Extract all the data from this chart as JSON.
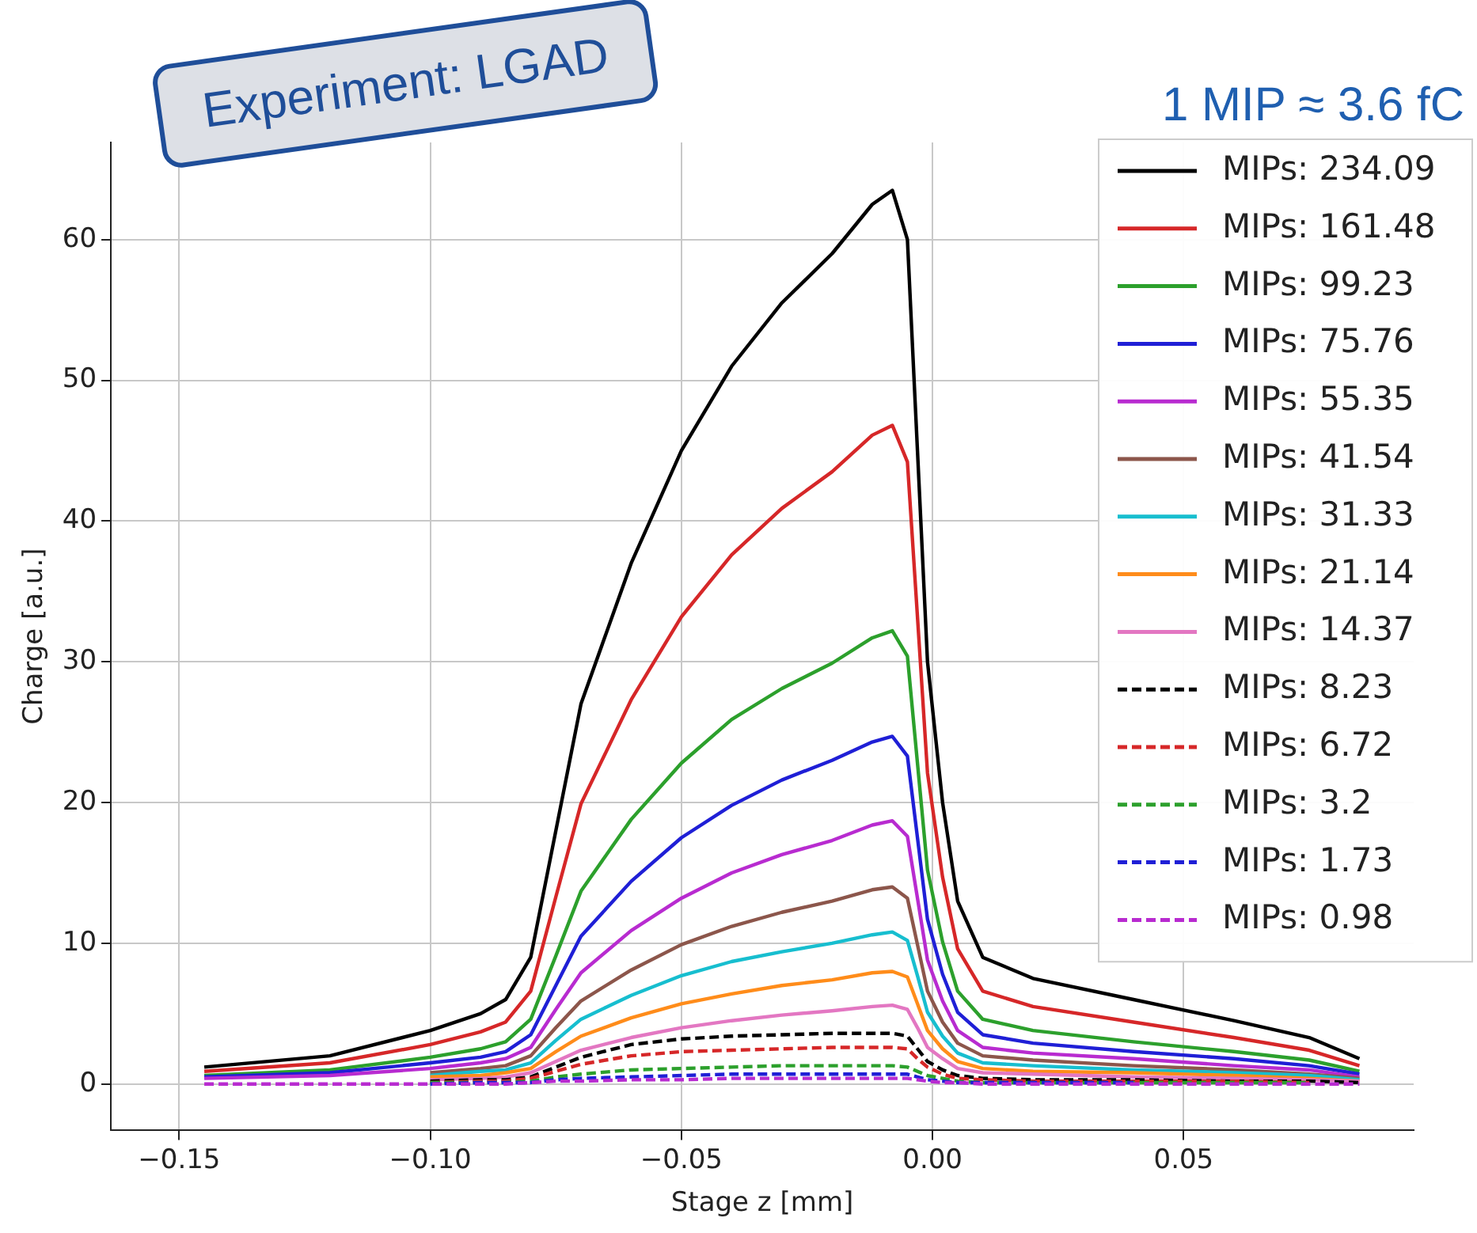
{
  "chart_data": {
    "type": "line",
    "xlabel": "Stage z [mm]",
    "ylabel": "Charge [a.u.]",
    "annotations": [
      "Experiment: LGAD",
      "1 MIP ≈ 3.6 fC"
    ],
    "x": [
      -0.145,
      -0.12,
      -0.1,
      -0.09,
      -0.085,
      -0.08,
      -0.075,
      -0.07,
      -0.06,
      -0.05,
      -0.04,
      -0.03,
      -0.02,
      -0.012,
      -0.008,
      -0.005,
      -0.003,
      -0.001,
      0.002,
      0.005,
      0.01,
      0.02,
      0.04,
      0.06,
      0.075,
      0.085
    ],
    "xlim": [
      -0.1636,
      0.0958
    ],
    "ylim": [
      -3.3,
      66.9
    ],
    "xticks": [
      {
        "value": -0.15,
        "label": "−0.15"
      },
      {
        "value": -0.1,
        "label": "−0.10"
      },
      {
        "value": -0.05,
        "label": "−0.05"
      },
      {
        "value": 0,
        "label": "0.00"
      },
      {
        "value": 0.05,
        "label": "0.05"
      }
    ],
    "yticks": [
      0,
      10,
      20,
      30,
      40,
      50,
      60
    ],
    "grid": true,
    "legend": "top right",
    "marker": "none",
    "series": [
      {
        "name": "MIPs: 234.09",
        "color": "#000000",
        "line_style": "solid",
        "values": [
          1.2,
          2,
          3.8,
          5,
          6,
          9,
          18,
          27,
          37,
          45,
          51,
          55.5,
          59,
          62.5,
          63.5,
          60,
          45,
          30,
          20,
          13,
          9,
          7.5,
          6,
          4.5,
          3.3,
          1.8
        ]
      },
      {
        "name": "MIPs: 161.48",
        "color": "#d62728",
        "line_style": "solid",
        "values": [
          0.9,
          1.5,
          2.8,
          3.7,
          4.4,
          6.6,
          13.3,
          19.9,
          27.3,
          33.2,
          37.6,
          40.9,
          43.5,
          46.1,
          46.8,
          44.2,
          33.2,
          22.1,
          14.7,
          9.6,
          6.6,
          5.5,
          4.4,
          3.3,
          2.4,
          1.3
        ]
      },
      {
        "name": "MIPs: 99.23",
        "color": "#2ca02c",
        "line_style": "solid",
        "values": [
          0.6,
          1,
          1.9,
          2.5,
          3,
          4.6,
          9.1,
          13.7,
          18.8,
          22.8,
          25.9,
          28.1,
          29.9,
          31.7,
          32.2,
          30.4,
          22.8,
          15.2,
          10.1,
          6.6,
          4.6,
          3.8,
          3,
          2.3,
          1.7,
          0.9
        ]
      },
      {
        "name": "MIPs: 75.76",
        "color": "#1f1fd6",
        "line_style": "solid",
        "values": [
          0.5,
          0.8,
          1.5,
          1.9,
          2.3,
          3.5,
          7,
          10.5,
          14.4,
          17.5,
          19.8,
          21.6,
          23,
          24.3,
          24.7,
          23.3,
          17.5,
          11.7,
          7.8,
          5.1,
          3.5,
          2.9,
          2.3,
          1.8,
          1.3,
          0.7
        ]
      },
      {
        "name": "MIPs: 55.35",
        "color": "#b82bd0",
        "line_style": "solid",
        "values": [
          0.4,
          0.6,
          1.1,
          1.5,
          1.8,
          2.6,
          5.3,
          7.9,
          10.9,
          13.2,
          15,
          16.3,
          17.3,
          18.4,
          18.7,
          17.6,
          13.2,
          8.8,
          5.9,
          3.8,
          2.6,
          2.2,
          1.8,
          1.3,
          1,
          0.5
        ]
      },
      {
        "name": "MIPs: 41.54",
        "color": "#8c564b",
        "line_style": "solid",
        "values": [
          null,
          null,
          0.8,
          1.1,
          1.3,
          2,
          4,
          5.9,
          8.1,
          9.9,
          11.2,
          12.2,
          13,
          13.8,
          14,
          13.2,
          9.9,
          6.6,
          4.4,
          2.9,
          2,
          1.7,
          1.3,
          1,
          0.7,
          0.4
        ]
      },
      {
        "name": "MIPs: 31.33",
        "color": "#17becf",
        "line_style": "solid",
        "values": [
          null,
          null,
          0.6,
          0.9,
          1,
          1.5,
          3.1,
          4.6,
          6.3,
          7.7,
          8.7,
          9.4,
          10,
          10.6,
          10.8,
          10.2,
          7.7,
          5.1,
          3.4,
          2.2,
          1.5,
          1.3,
          1,
          0.8,
          0.6,
          0.3
        ]
      },
      {
        "name": "MIPs: 21.14",
        "color": "#ff8c1a",
        "line_style": "solid",
        "values": [
          null,
          null,
          0.5,
          0.6,
          0.8,
          1.1,
          2.3,
          3.4,
          4.7,
          5.7,
          6.4,
          7,
          7.4,
          7.9,
          8,
          7.6,
          5.7,
          3.8,
          2.5,
          1.6,
          1.1,
          0.9,
          0.8,
          0.6,
          0.4,
          0.2
        ]
      },
      {
        "name": "MIPs: 14.37",
        "color": "#e377c2",
        "line_style": "solid",
        "values": [
          null,
          null,
          0.3,
          0.4,
          0.5,
          0.8,
          1.6,
          2.4,
          3.3,
          4,
          4.5,
          4.9,
          5.2,
          5.5,
          5.6,
          5.3,
          4,
          2.6,
          1.8,
          1.1,
          0.8,
          0.7,
          0.5,
          0.4,
          0.3,
          0.2
        ]
      },
      {
        "name": "MIPs: 8.23",
        "color": "#000000",
        "line_style": "dashed",
        "values": [
          null,
          null,
          0.2,
          0.3,
          0.3,
          0.5,
          1.2,
          1.9,
          2.8,
          3.2,
          3.4,
          3.5,
          3.6,
          3.6,
          3.6,
          3.4,
          2.5,
          1.6,
          1,
          0.6,
          0.4,
          0.3,
          0.3,
          0.2,
          0.2,
          0.1
        ]
      },
      {
        "name": "MIPs: 6.72",
        "color": "#d62728",
        "line_style": "dashed",
        "values": [
          null,
          null,
          0.1,
          0.2,
          0.2,
          0.4,
          0.9,
          1.4,
          2,
          2.3,
          2.4,
          2.5,
          2.6,
          2.6,
          2.6,
          2.5,
          1.8,
          1.2,
          0.7,
          0.4,
          0.3,
          0.2,
          0.2,
          0.2,
          0.1,
          null
        ]
      },
      {
        "name": "MIPs: 3.2",
        "color": "#2ca02c",
        "line_style": "dashed",
        "values": [
          null,
          null,
          0.1,
          0.1,
          0.1,
          0.2,
          0.5,
          0.7,
          1,
          1.1,
          1.2,
          1.3,
          1.3,
          1.3,
          1.3,
          1.2,
          0.9,
          0.6,
          0.4,
          0.2,
          0.1,
          0.1,
          0.1,
          0.1,
          0.1,
          null
        ]
      },
      {
        "name": "MIPs: 1.73",
        "color": "#1f1fd6",
        "line_style": "dashed",
        "values": [
          null,
          null,
          0,
          0.1,
          0.1,
          0.1,
          0.3,
          0.4,
          0.5,
          0.6,
          0.7,
          0.7,
          0.7,
          0.7,
          0.7,
          0.7,
          0.5,
          0.3,
          0.2,
          0.1,
          0.1,
          0.1,
          0.1,
          null,
          null,
          null
        ]
      },
      {
        "name": "MIPs: 0.98",
        "color": "#b82bd0",
        "line_style": "dashed",
        "values": [
          0,
          0,
          0,
          0,
          0,
          0.1,
          0.2,
          0.2,
          0.3,
          0.3,
          0.4,
          0.4,
          0.4,
          0.4,
          0.4,
          0.4,
          0.3,
          0.2,
          0.1,
          0.1,
          0,
          0,
          0,
          0,
          0,
          0
        ]
      }
    ]
  }
}
